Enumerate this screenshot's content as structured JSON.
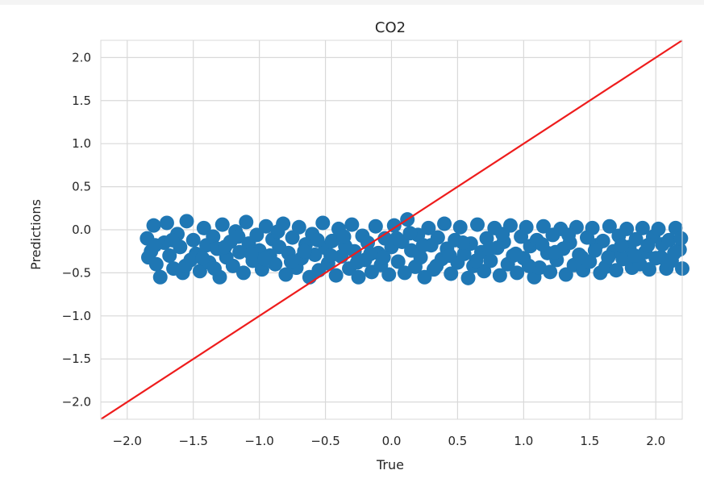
{
  "chart_data": {
    "type": "scatter",
    "title": "CO2",
    "xlabel": "True",
    "ylabel": "Predictions",
    "xlim": [
      -2.2,
      2.2
    ],
    "ylim": [
      -2.2,
      2.2
    ],
    "xticks": [
      -2.0,
      -1.5,
      -1.0,
      -0.5,
      0.0,
      0.5,
      1.0,
      1.5,
      2.0
    ],
    "yticks": [
      -2.0,
      -1.5,
      -1.0,
      -0.5,
      0.0,
      0.5,
      1.0,
      1.5,
      2.0
    ],
    "xtick_labels": [
      "−2.0",
      "−1.5",
      "−1.0",
      "−0.5",
      "0.0",
      "0.5",
      "1.0",
      "1.5",
      "2.0"
    ],
    "ytick_labels": [
      "−2.0",
      "−1.5",
      "−1.0",
      "−0.5",
      "0.0",
      "0.5",
      "1.0",
      "1.5",
      "2.0"
    ],
    "grid": true,
    "points": [
      [
        -1.85,
        -0.1
      ],
      [
        -1.82,
        -0.25
      ],
      [
        -1.8,
        0.05
      ],
      [
        -1.78,
        -0.4
      ],
      [
        -1.75,
        -0.55
      ],
      [
        -1.72,
        -0.15
      ],
      [
        -1.7,
        0.08
      ],
      [
        -1.68,
        -0.3
      ],
      [
        -1.65,
        -0.45
      ],
      [
        -1.62,
        -0.05
      ],
      [
        -1.6,
        -0.2
      ],
      [
        -1.58,
        -0.5
      ],
      [
        -1.55,
        0.1
      ],
      [
        -1.52,
        -0.35
      ],
      [
        -1.5,
        -0.12
      ],
      [
        -1.48,
        -0.28
      ],
      [
        -1.45,
        -0.48
      ],
      [
        -1.42,
        0.02
      ],
      [
        -1.4,
        -0.18
      ],
      [
        -1.38,
        -0.38
      ],
      [
        -1.35,
        -0.08
      ],
      [
        -1.32,
        -0.22
      ],
      [
        -1.3,
        -0.55
      ],
      [
        -1.28,
        0.06
      ],
      [
        -1.25,
        -0.32
      ],
      [
        -1.22,
        -0.14
      ],
      [
        -1.2,
        -0.42
      ],
      [
        -1.18,
        -0.02
      ],
      [
        -1.15,
        -0.26
      ],
      [
        -1.12,
        -0.5
      ],
      [
        -1.1,
        0.09
      ],
      [
        -1.08,
        -0.16
      ],
      [
        -1.05,
        -0.36
      ],
      [
        -1.02,
        -0.06
      ],
      [
        -1.0,
        -0.24
      ],
      [
        -0.98,
        -0.46
      ],
      [
        -0.95,
        0.04
      ],
      [
        -0.92,
        -0.3
      ],
      [
        -0.9,
        -0.11
      ],
      [
        -0.88,
        -0.4
      ],
      [
        -0.85,
        -0.2
      ],
      [
        -0.82,
        0.07
      ],
      [
        -0.8,
        -0.52
      ],
      [
        -0.78,
        -0.27
      ],
      [
        -0.75,
        -0.09
      ],
      [
        -0.72,
        -0.44
      ],
      [
        -0.7,
        0.03
      ],
      [
        -0.68,
        -0.33
      ],
      [
        -0.65,
        -0.17
      ],
      [
        -0.62,
        -0.55
      ],
      [
        -0.6,
        -0.05
      ],
      [
        -0.58,
        -0.29
      ],
      [
        -0.55,
        -0.47
      ],
      [
        -0.52,
        0.08
      ],
      [
        -0.5,
        -0.21
      ],
      [
        -0.48,
        -0.39
      ],
      [
        -0.45,
        -0.13
      ],
      [
        -0.42,
        -0.53
      ],
      [
        -0.4,
        0.01
      ],
      [
        -0.38,
        -0.31
      ],
      [
        -0.35,
        -0.19
      ],
      [
        -0.32,
        -0.45
      ],
      [
        -0.3,
        0.06
      ],
      [
        -0.28,
        -0.25
      ],
      [
        -0.25,
        -0.55
      ],
      [
        -0.22,
        -0.07
      ],
      [
        -0.2,
        -0.35
      ],
      [
        -0.18,
        -0.15
      ],
      [
        -0.15,
        -0.49
      ],
      [
        -0.12,
        0.04
      ],
      [
        -0.1,
        -0.27
      ],
      [
        -0.08,
        -0.41
      ],
      [
        -0.05,
        -0.1
      ],
      [
        -0.02,
        -0.52
      ],
      [
        0.0,
        -0.2
      ],
      [
        0.02,
        0.05
      ],
      [
        0.05,
        -0.37
      ],
      [
        0.08,
        -0.14
      ],
      [
        0.1,
        -0.5
      ],
      [
        0.12,
        0.12
      ],
      [
        0.15,
        -0.24
      ],
      [
        0.18,
        -0.43
      ],
      [
        0.2,
        -0.06
      ],
      [
        0.22,
        -0.32
      ],
      [
        0.25,
        -0.55
      ],
      [
        0.28,
        0.02
      ],
      [
        0.3,
        -0.18
      ],
      [
        0.32,
        -0.46
      ],
      [
        0.35,
        -0.09
      ],
      [
        0.38,
        -0.34
      ],
      [
        0.4,
        0.07
      ],
      [
        0.42,
        -0.22
      ],
      [
        0.45,
        -0.51
      ],
      [
        0.48,
        -0.12
      ],
      [
        0.5,
        -0.38
      ],
      [
        0.52,
        0.03
      ],
      [
        0.55,
        -0.28
      ],
      [
        0.58,
        -0.56
      ],
      [
        0.6,
        -0.16
      ],
      [
        0.62,
        -0.42
      ],
      [
        0.65,
        0.06
      ],
      [
        0.68,
        -0.26
      ],
      [
        0.7,
        -0.48
      ],
      [
        0.72,
        -0.1
      ],
      [
        0.75,
        -0.36
      ],
      [
        0.78,
        0.02
      ],
      [
        0.8,
        -0.21
      ],
      [
        0.82,
        -0.53
      ],
      [
        0.85,
        -0.14
      ],
      [
        0.88,
        -0.4
      ],
      [
        0.9,
        0.05
      ],
      [
        0.92,
        -0.3
      ],
      [
        0.95,
        -0.5
      ],
      [
        0.98,
        -0.08
      ],
      [
        1.0,
        -0.33
      ],
      [
        1.02,
        0.03
      ],
      [
        1.05,
        -0.19
      ],
      [
        1.08,
        -0.55
      ],
      [
        1.1,
        -0.12
      ],
      [
        1.12,
        -0.44
      ],
      [
        1.15,
        0.04
      ],
      [
        1.18,
        -0.27
      ],
      [
        1.2,
        -0.49
      ],
      [
        1.22,
        -0.06
      ],
      [
        1.25,
        -0.35
      ],
      [
        1.28,
        0.01
      ],
      [
        1.3,
        -0.22
      ],
      [
        1.32,
        -0.52
      ],
      [
        1.35,
        -0.15
      ],
      [
        1.38,
        -0.41
      ],
      [
        1.4,
        0.03
      ],
      [
        1.42,
        -0.29
      ],
      [
        1.45,
        -0.47
      ],
      [
        1.48,
        -0.09
      ],
      [
        1.5,
        -0.37
      ],
      [
        1.52,
        0.02
      ],
      [
        1.55,
        -0.18
      ],
      [
        1.58,
        -0.5
      ],
      [
        1.6,
        -0.13
      ],
      [
        1.62,
        -0.43
      ],
      [
        1.65,
        0.04
      ],
      [
        1.68,
        -0.25
      ],
      [
        1.7,
        -0.47
      ],
      [
        1.72,
        -0.07
      ],
      [
        1.75,
        -0.34
      ],
      [
        1.78,
        0.01
      ],
      [
        1.8,
        -0.2
      ],
      [
        1.82,
        -0.44
      ],
      [
        1.85,
        -0.11
      ],
      [
        1.88,
        -0.4
      ],
      [
        1.9,
        0.02
      ],
      [
        1.92,
        -0.26
      ],
      [
        1.95,
        -0.46
      ],
      [
        1.98,
        -0.08
      ],
      [
        2.0,
        -0.33
      ],
      [
        2.02,
        0.01
      ],
      [
        2.05,
        -0.17
      ],
      [
        2.08,
        -0.45
      ],
      [
        2.1,
        -0.12
      ],
      [
        2.12,
        -0.36
      ],
      [
        2.15,
        0.02
      ],
      [
        2.18,
        -0.23
      ],
      [
        2.2,
        -0.45
      ],
      [
        -1.84,
        -0.32
      ],
      [
        -1.79,
        -0.18
      ],
      [
        -1.66,
        -0.12
      ],
      [
        -1.56,
        -0.42
      ],
      [
        -1.43,
        -0.33
      ],
      [
        -1.34,
        -0.45
      ],
      [
        -1.26,
        -0.2
      ],
      [
        -1.16,
        -0.08
      ],
      [
        -1.06,
        -0.28
      ],
      [
        -0.96,
        -0.34
      ],
      [
        -0.86,
        -0.02
      ],
      [
        -0.76,
        -0.37
      ],
      [
        -0.66,
        -0.25
      ],
      [
        -0.56,
        -0.12
      ],
      [
        -0.46,
        -0.3
      ],
      [
        -0.36,
        -0.08
      ],
      [
        -0.26,
        -0.38
      ],
      [
        -0.16,
        -0.28
      ],
      [
        -0.06,
        -0.32
      ],
      [
        0.04,
        -0.1
      ],
      [
        0.14,
        -0.04
      ],
      [
        0.24,
        -0.18
      ],
      [
        0.34,
        -0.42
      ],
      [
        0.44,
        -0.3
      ],
      [
        0.54,
        -0.15
      ],
      [
        0.64,
        -0.36
      ],
      [
        0.74,
        -0.22
      ],
      [
        0.84,
        -0.05
      ],
      [
        0.94,
        -0.28
      ],
      [
        1.04,
        -0.42
      ],
      [
        1.14,
        -0.17
      ],
      [
        1.24,
        -0.26
      ],
      [
        1.34,
        -0.06
      ],
      [
        1.44,
        -0.32
      ],
      [
        1.54,
        -0.24
      ],
      [
        1.64,
        -0.32
      ],
      [
        1.74,
        -0.18
      ],
      [
        1.84,
        -0.3
      ],
      [
        1.94,
        -0.18
      ],
      [
        2.04,
        -0.32
      ],
      [
        2.14,
        -0.27
      ],
      [
        2.19,
        -0.1
      ]
    ],
    "reference_line": {
      "from": [
        -2.2,
        -2.2
      ],
      "to": [
        2.2,
        2.2
      ],
      "color": "#ee1c1c"
    },
    "point_color": "#1f77b4",
    "grid_color": "#d9d9d9"
  }
}
